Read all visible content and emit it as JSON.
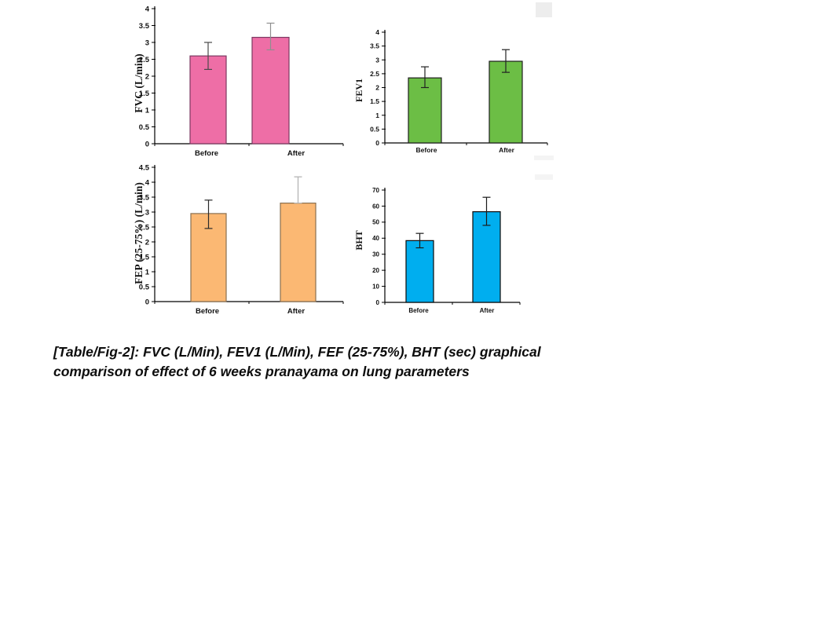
{
  "caption": {
    "lines": [
      "[Table/Fig-2]: FVC (L/Min), FEV1 (L/Min), FEF (25-75%), BHT (sec) graphical",
      "comparison of effect of 6 weeks pranayama on lung parameters"
    ]
  },
  "chart_data": [
    {
      "id": "fvc",
      "type": "bar",
      "title": "",
      "xlabel": "",
      "ylabel": "FVC (L/min)",
      "categories": [
        "Before",
        "After"
      ],
      "values": [
        2.6,
        3.15
      ],
      "errors": [
        [
          2.2,
          3.0
        ],
        [
          2.78,
          3.57
        ]
      ],
      "ylim": [
        0,
        4
      ],
      "yticks": [
        0,
        0.5,
        1,
        1.5,
        2,
        2.5,
        3,
        3.5,
        4
      ],
      "grid": false,
      "legend": false,
      "bar_color": "#ee6ea6",
      "bar_border": "#7c3a62",
      "error_colors": [
        "#4a4a4a",
        "#8f8f8f"
      ]
    },
    {
      "id": "fev1",
      "type": "bar",
      "title": "",
      "xlabel": "",
      "ylabel": "FEV1",
      "categories": [
        "Before",
        "After"
      ],
      "values": [
        2.35,
        2.95
      ],
      "errors": [
        [
          2.0,
          2.75
        ],
        [
          2.55,
          3.37
        ]
      ],
      "ylim": [
        0,
        4
      ],
      "yticks": [
        0,
        0.5,
        1,
        1.5,
        2,
        2.5,
        3,
        3.5,
        4
      ],
      "grid": false,
      "legend": false,
      "bar_color": "#6cbe45",
      "bar_border": "#1e1e1e",
      "error_colors": [
        "#222222",
        "#222222"
      ]
    },
    {
      "id": "fep",
      "type": "bar",
      "title": "",
      "xlabel": "",
      "ylabel": "FEP (25-75%) (L/min)",
      "categories": [
        "Before",
        "After"
      ],
      "values": [
        2.95,
        3.3
      ],
      "errors": [
        [
          2.45,
          3.4
        ],
        [
          3.3,
          4.18
        ]
      ],
      "ylim": [
        0,
        4.5
      ],
      "yticks": [
        0,
        0.5,
        1,
        1.5,
        2,
        2.5,
        3,
        3.5,
        4,
        4.5
      ],
      "grid": false,
      "legend": false,
      "bar_color": "#fbb873",
      "bar_border": "#8a7050",
      "error_colors": [
        "#2a2a2a",
        "#b0b0b0"
      ]
    },
    {
      "id": "bht",
      "type": "bar",
      "title": "",
      "xlabel": "",
      "ylabel": "BHT",
      "categories": [
        "Before",
        "After"
      ],
      "values": [
        38.5,
        56.5
      ],
      "errors": [
        [
          34,
          43
        ],
        [
          48,
          65.5
        ]
      ],
      "ylim": [
        0,
        70
      ],
      "yticks": [
        0,
        10,
        20,
        30,
        40,
        50,
        60,
        70
      ],
      "grid": false,
      "legend": false,
      "bar_color": "#00aeef",
      "bar_border": "#0a0a0a",
      "error_colors": [
        "#1a1a1a",
        "#1a1a1a"
      ]
    }
  ]
}
